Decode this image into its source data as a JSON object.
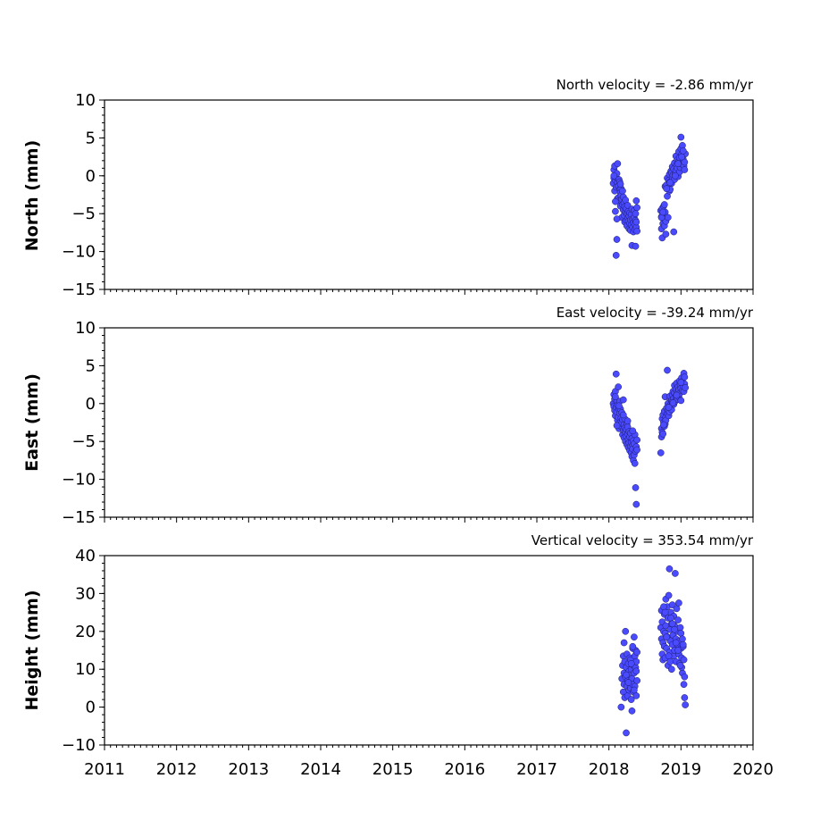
{
  "chart_data": [
    {
      "type": "scatter",
      "id": "north",
      "annotation": "North velocity = -2.86 mm/yr",
      "ylabel": "North (mm)",
      "xlim": [
        2011,
        2020
      ],
      "ylim": [
        -15,
        10
      ],
      "yticks": [
        10,
        5,
        0,
        -5,
        -10,
        -15
      ],
      "ytick_labels": [
        "10",
        "5",
        "0",
        "−5",
        "−10",
        "−15"
      ],
      "point_color": "#4a4aff",
      "series": [
        {
          "x": [
            2018.06,
            2018.07,
            2018.07,
            2018.08,
            2018.08,
            2018.09,
            2018.09,
            2018.1,
            2018.1,
            2018.11,
            2018.11,
            2018.12,
            2018.12,
            2018.13,
            2018.13,
            2018.14,
            2018.14,
            2018.15,
            2018.15,
            2018.16,
            2018.16,
            2018.17,
            2018.17,
            2018.18,
            2018.18,
            2018.19,
            2018.19,
            2018.2,
            2018.2,
            2018.21,
            2018.21,
            2018.22,
            2018.22,
            2018.23,
            2018.23,
            2018.24,
            2018.24,
            2018.25,
            2018.25,
            2018.26,
            2018.26,
            2018.27,
            2018.27,
            2018.28,
            2018.28,
            2018.29,
            2018.29,
            2018.3,
            2018.3,
            2018.31,
            2018.31,
            2018.32,
            2018.32,
            2018.33,
            2018.33,
            2018.34,
            2018.34,
            2018.35,
            2018.35,
            2018.36,
            2018.36,
            2018.37,
            2018.37,
            2018.38,
            2018.38,
            2018.39,
            2018.39,
            2018.1,
            2018.11,
            2018.38,
            2018.37,
            2018.12,
            2018.07,
            2018.09,
            2018.16,
            2018.72,
            2018.73,
            2018.73,
            2018.74,
            2018.74,
            2018.75,
            2018.75,
            2018.76,
            2018.77,
            2018.77,
            2018.78,
            2018.78,
            2018.79,
            2018.79,
            2018.8,
            2018.81,
            2018.81,
            2018.82,
            2018.82,
            2018.83,
            2018.84,
            2018.84,
            2018.85,
            2018.85,
            2018.86,
            2018.87,
            2018.87,
            2018.88,
            2018.88,
            2018.89,
            2018.9,
            2018.9,
            2018.91,
            2018.91,
            2018.92,
            2018.93,
            2018.93,
            2018.94,
            2018.95,
            2018.95,
            2018.96,
            2018.97,
            2018.97,
            2018.98,
            2018.98,
            2018.99,
            2019.0,
            2019.0,
            2019.01,
            2019.02,
            2019.02,
            2019.03,
            2019.04,
            2019.04,
            2019.05,
            2019.05,
            2019.06,
            2018.73,
            2018.75,
            2018.8,
            2018.85,
            2018.92,
            2018.96,
            2019.01,
            2019.03
          ],
          "y": [
            -1.0,
            -0.3,
            0.8,
            1.3,
            -2.0,
            -0.6,
            -4.7,
            -0.2,
            -1.5,
            0.3,
            -8.4,
            -3.0,
            -0.9,
            -2.9,
            -1.4,
            -0.5,
            -3.3,
            -1.8,
            -0.8,
            -2.2,
            -4.0,
            -2.6,
            -1.7,
            -3.1,
            -5.5,
            -2.0,
            -3.8,
            -4.5,
            -2.8,
            -5.2,
            -3.6,
            -4.1,
            -6.1,
            -4.8,
            -3.2,
            -5.9,
            -4.3,
            -5.0,
            -6.6,
            -3.9,
            -5.6,
            -4.7,
            -6.0,
            -5.3,
            -7.0,
            -4.9,
            -6.3,
            -5.8,
            -7.2,
            -5.1,
            -6.5,
            -4.4,
            -9.2,
            -6.8,
            -5.7,
            -7.4,
            -6.2,
            -5.5,
            -4.6,
            -7.1,
            -6.4,
            -9.3,
            -5.9,
            -3.3,
            -6.8,
            -4.2,
            -7.3,
            -10.5,
            -5.7,
            -6.1,
            -5.0,
            1.6,
            0.0,
            -3.4,
            -1.1,
            -4.6,
            -5.4,
            -7.0,
            -8.2,
            -4.3,
            -6.3,
            -5.6,
            -4.0,
            -3.8,
            -6.6,
            -1.4,
            -4.8,
            -7.7,
            -6.0,
            -1.2,
            -2.7,
            -0.3,
            -1.6,
            -5.5,
            -0.6,
            -2.0,
            0.2,
            -0.8,
            -1.8,
            0.6,
            -1.0,
            0.4,
            -0.2,
            1.2,
            0.1,
            -7.4,
            0.9,
            -0.5,
            1.7,
            0.3,
            2.6,
            0.7,
            1.4,
            1.0,
            2.1,
            -0.1,
            1.9,
            3.2,
            0.5,
            2.4,
            1.1,
            5.1,
            3.6,
            2.8,
            1.5,
            4.0,
            2.2,
            1.3,
            3.0,
            0.8,
            1.8,
            2.9,
            -5.5,
            -4.8,
            -1.7,
            -0.9,
            0.0,
            1.6,
            2.5,
            3.3
          ]
        }
      ]
    },
    {
      "type": "scatter",
      "id": "east",
      "annotation": "East velocity = -39.24 mm/yr",
      "ylabel": "East (mm)",
      "xlim": [
        2011,
        2020
      ],
      "ylim": [
        -15,
        10
      ],
      "yticks": [
        10,
        5,
        0,
        -5,
        -10,
        -15
      ],
      "ytick_labels": [
        "10",
        "5",
        "0",
        "−5",
        "−10",
        "−15"
      ],
      "point_color": "#4a4aff",
      "series": [
        {
          "x": [
            2018.06,
            2018.07,
            2018.07,
            2018.08,
            2018.08,
            2018.09,
            2018.09,
            2018.1,
            2018.1,
            2018.11,
            2018.11,
            2018.12,
            2018.12,
            2018.13,
            2018.13,
            2018.14,
            2018.14,
            2018.15,
            2018.15,
            2018.16,
            2018.16,
            2018.17,
            2018.17,
            2018.18,
            2018.18,
            2018.19,
            2018.19,
            2018.2,
            2018.2,
            2018.21,
            2018.21,
            2018.22,
            2018.22,
            2018.23,
            2018.23,
            2018.24,
            2018.24,
            2018.25,
            2018.25,
            2018.26,
            2018.26,
            2018.27,
            2018.27,
            2018.28,
            2018.28,
            2018.29,
            2018.29,
            2018.3,
            2018.3,
            2018.31,
            2018.31,
            2018.32,
            2018.32,
            2018.33,
            2018.33,
            2018.34,
            2018.34,
            2018.35,
            2018.35,
            2018.36,
            2018.36,
            2018.37,
            2018.37,
            2018.38,
            2018.38,
            2018.39,
            2018.39,
            2018.09,
            2018.11,
            2018.14,
            2018.2,
            2018.26,
            2018.33,
            2018.72,
            2018.73,
            2018.73,
            2018.74,
            2018.74,
            2018.75,
            2018.75,
            2018.76,
            2018.77,
            2018.77,
            2018.78,
            2018.78,
            2018.79,
            2018.79,
            2018.8,
            2018.81,
            2018.81,
            2018.82,
            2018.82,
            2018.83,
            2018.84,
            2018.84,
            2018.85,
            2018.85,
            2018.86,
            2018.87,
            2018.87,
            2018.88,
            2018.88,
            2018.89,
            2018.9,
            2018.9,
            2018.91,
            2018.91,
            2018.92,
            2018.93,
            2018.93,
            2018.94,
            2018.95,
            2018.95,
            2018.96,
            2018.97,
            2018.97,
            2018.98,
            2018.98,
            2018.99,
            2019.0,
            2019.0,
            2019.01,
            2019.02,
            2019.02,
            2019.03,
            2019.04,
            2019.04,
            2019.05,
            2019.05,
            2019.06,
            2018.76,
            2018.83,
            2018.89,
            2018.94,
            2019.0
          ],
          "y": [
            0.0,
            -0.4,
            1.2,
            -0.9,
            0.6,
            -1.6,
            1.6,
            3.9,
            -0.5,
            0.4,
            -1.1,
            -2.2,
            -0.2,
            2.2,
            -1.8,
            -0.8,
            -3.3,
            -1.3,
            0.3,
            -2.4,
            -0.7,
            -1.9,
            -3.0,
            -1.2,
            -2.6,
            -4.1,
            -2.1,
            0.5,
            -3.5,
            -2.8,
            -4.5,
            -3.2,
            -2.0,
            -3.8,
            -5.0,
            -3.4,
            -4.3,
            -2.7,
            -5.4,
            -4.0,
            -3.1,
            -5.8,
            -4.7,
            -3.7,
            -5.2,
            -6.2,
            -4.4,
            -5.6,
            -3.9,
            -6.5,
            -5.1,
            -4.6,
            -7.0,
            -5.5,
            -6.0,
            -7.5,
            -4.9,
            -6.8,
            -5.3,
            -7.9,
            -4.1,
            -6.3,
            -11.1,
            -5.7,
            -13.3,
            -4.8,
            -6.1,
            0.9,
            -2.9,
            -0.3,
            -1.5,
            -2.3,
            -3.6,
            -6.5,
            -4.4,
            -3.3,
            -2.0,
            -3.8,
            -1.5,
            -4.0,
            -2.5,
            -3.0,
            -1.0,
            -2.7,
            0.9,
            -1.8,
            -2.2,
            -0.6,
            -1.3,
            4.4,
            -0.9,
            0.0,
            -1.6,
            -0.3,
            -1.1,
            0.6,
            1.0,
            -0.4,
            0.4,
            -0.8,
            1.2,
            0.2,
            1.6,
            -0.1,
            0.7,
            2.4,
            1.4,
            0.3,
            1.9,
            1.0,
            2.7,
            0.6,
            1.5,
            2.2,
            0.9,
            1.8,
            3.0,
            1.3,
            2.5,
            2.0,
            0.4,
            3.4,
            1.7,
            2.9,
            2.3,
            4.0,
            1.6,
            3.5,
            2.6,
            2.1,
            -2.8,
            -0.5,
            0.1,
            1.1,
            2.8
          ]
        }
      ]
    },
    {
      "type": "scatter",
      "id": "height",
      "annotation": "Vertical velocity = 353.54 mm/yr",
      "ylabel": "Height (mm)",
      "xlim": [
        2011,
        2020
      ],
      "ylim": [
        -10,
        40
      ],
      "yticks": [
        40,
        30,
        20,
        10,
        0,
        -10
      ],
      "ytick_labels": [
        "40",
        "30",
        "20",
        "10",
        "0",
        "−10"
      ],
      "point_color": "#4a4aff",
      "series": [
        {
          "x": [
            2018.17,
            2018.18,
            2018.19,
            2018.2,
            2018.2,
            2018.21,
            2018.21,
            2018.22,
            2018.22,
            2018.23,
            2018.23,
            2018.24,
            2018.24,
            2018.25,
            2018.25,
            2018.26,
            2018.26,
            2018.27,
            2018.27,
            2018.28,
            2018.28,
            2018.29,
            2018.29,
            2018.3,
            2018.3,
            2018.31,
            2018.31,
            2018.32,
            2018.32,
            2018.33,
            2018.33,
            2018.34,
            2018.34,
            2018.35,
            2018.35,
            2018.36,
            2018.36,
            2018.37,
            2018.37,
            2018.38,
            2018.38,
            2018.39,
            2018.39,
            2018.21,
            2018.24,
            2018.27,
            2018.31,
            2018.35,
            2018.38,
            2018.33,
            2018.72,
            2018.73,
            2018.73,
            2018.74,
            2018.74,
            2018.75,
            2018.75,
            2018.76,
            2018.77,
            2018.77,
            2018.78,
            2018.78,
            2018.79,
            2018.79,
            2018.8,
            2018.81,
            2018.81,
            2018.82,
            2018.82,
            2018.83,
            2018.84,
            2018.84,
            2018.85,
            2018.85,
            2018.86,
            2018.87,
            2018.87,
            2018.88,
            2018.88,
            2018.89,
            2018.9,
            2018.9,
            2018.91,
            2018.91,
            2018.92,
            2018.93,
            2018.93,
            2018.94,
            2018.95,
            2018.95,
            2018.96,
            2018.97,
            2018.97,
            2018.98,
            2018.98,
            2018.99,
            2019.0,
            2019.0,
            2019.01,
            2019.02,
            2019.02,
            2019.03,
            2019.04,
            2019.04,
            2019.05,
            2019.05,
            2019.06,
            2018.76,
            2018.8,
            2018.86,
            2018.91,
            2018.96,
            2019.01,
            2018.83,
            2018.88,
            2018.93,
            2018.99,
            2019.03,
            2018.78,
            2018.85
          ],
          "y": [
            0.0,
            7.5,
            11.0,
            13.5,
            4.0,
            9.0,
            6.0,
            12.0,
            2.5,
            8.0,
            20.0,
            -6.8,
            10.5,
            5.5,
            14.0,
            7.0,
            3.0,
            11.5,
            6.5,
            9.5,
            4.5,
            13.0,
            8.5,
            5.0,
            12.5,
            2.0,
            10.0,
            7.5,
            -1.0,
            15.5,
            6.0,
            11.0,
            4.0,
            18.5,
            9.0,
            13.5,
            5.5,
            15.0,
            10.5,
            3.0,
            12.0,
            7.0,
            14.5,
            17.0,
            8.5,
            6.5,
            11.5,
            4.5,
            9.5,
            16.0,
            21.0,
            25.5,
            18.0,
            14.0,
            22.5,
            17.0,
            12.5,
            20.0,
            16.0,
            24.5,
            19.5,
            13.0,
            28.5,
            21.5,
            15.5,
            26.5,
            18.5,
            11.0,
            23.5,
            29.5,
            14.5,
            36.5,
            20.5,
            17.5,
            25.0,
            10.0,
            22.0,
            16.5,
            27.0,
            19.0,
            13.5,
            24.0,
            15.0,
            21.5,
            35.3,
            18.0,
            12.0,
            26.0,
            16.5,
            20.0,
            23.0,
            14.0,
            27.5,
            17.5,
            11.5,
            21.0,
            15.5,
            19.5,
            13.0,
            18.0,
            9.0,
            16.0,
            6.0,
            12.5,
            8.0,
            2.5,
            0.6,
            26.5,
            18.5,
            23.5,
            20.5,
            15.0,
            10.5,
            13.5,
            22.0,
            17.0,
            11.0,
            16.5,
            25.0,
            12.0
          ]
        }
      ]
    }
  ],
  "xaxis": {
    "ticks": [
      2011,
      2012,
      2013,
      2014,
      2015,
      2016,
      2017,
      2018,
      2019,
      2020
    ],
    "tick_labels": [
      "2011",
      "2012",
      "2013",
      "2014",
      "2015",
      "2016",
      "2017",
      "2018",
      "2019",
      "2020"
    ]
  }
}
